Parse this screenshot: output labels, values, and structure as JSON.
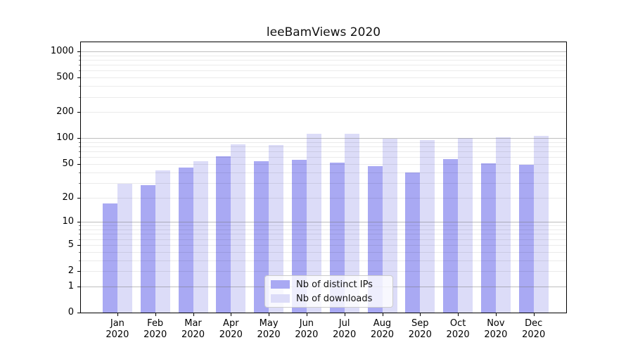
{
  "title": "leeBamViews 2020",
  "colors": {
    "ips_bar": "#a9a9f3",
    "downloads_bar": "#dcdcf8",
    "grid_major": "rgba(110,110,110,0.45)",
    "grid_minor": "rgba(0,0,0,0.08)",
    "axis": "#000000"
  },
  "legend": {
    "items": [
      {
        "label": "Nb of distinct IPs",
        "series": "ips"
      },
      {
        "label": "Nb of downloads",
        "series": "downloads"
      }
    ]
  },
  "chart_data": {
    "type": "bar",
    "title": "leeBamViews 2020",
    "categories": [
      {
        "month": "Jan",
        "year": "2020"
      },
      {
        "month": "Feb",
        "year": "2020"
      },
      {
        "month": "Mar",
        "year": "2020"
      },
      {
        "month": "Apr",
        "year": "2020"
      },
      {
        "month": "May",
        "year": "2020"
      },
      {
        "month": "Jun",
        "year": "2020"
      },
      {
        "month": "Jul",
        "year": "2020"
      },
      {
        "month": "Aug",
        "year": "2020"
      },
      {
        "month": "Sep",
        "year": "2020"
      },
      {
        "month": "Oct",
        "year": "2020"
      },
      {
        "month": "Nov",
        "year": "2020"
      },
      {
        "month": "Dec",
        "year": "2020"
      }
    ],
    "series": [
      {
        "name": "Nb of distinct IPs",
        "key": "ips",
        "values": [
          17,
          28,
          45,
          61,
          54,
          56,
          52,
          47,
          40,
          57,
          51,
          49
        ]
      },
      {
        "name": "Nb of downloads",
        "key": "downloads",
        "values": [
          29,
          42,
          54,
          84,
          83,
          113,
          113,
          98,
          94,
          100,
          102,
          106
        ]
      }
    ],
    "xlabel": "",
    "ylabel": "",
    "yscale": "log(value+1)",
    "y_tick_values": [
      0,
      1,
      2,
      5,
      10,
      20,
      50,
      100,
      200,
      500,
      1000
    ],
    "y_major_grid_values": [
      1,
      10,
      100,
      1000
    ],
    "y_minor_grid_multipliers": [
      2,
      3,
      4,
      5,
      6,
      7,
      8,
      9
    ],
    "ylim": [
      0,
      1275
    ],
    "grid": true,
    "grid_above_bars": true,
    "legend_position": "lower center"
  }
}
